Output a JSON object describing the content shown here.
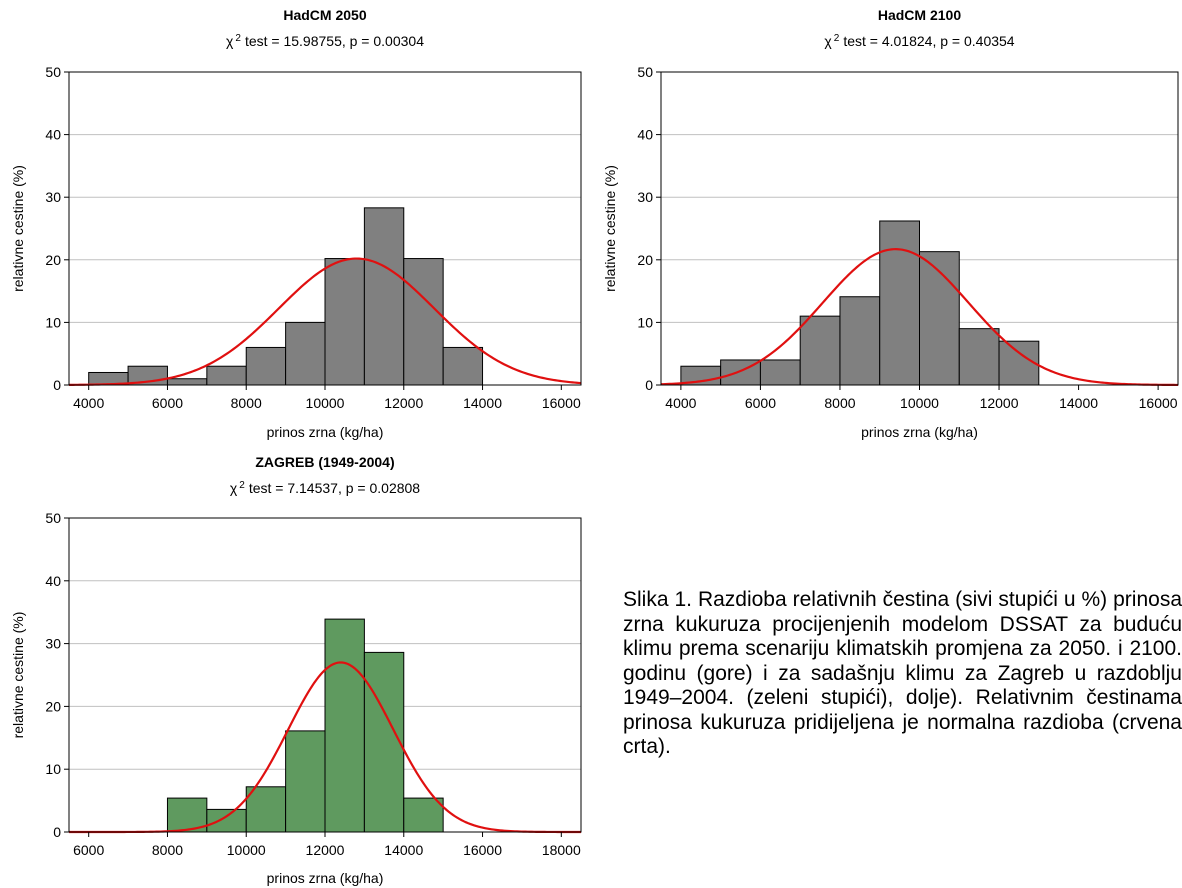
{
  "figure_caption": "Slika 1. Razdioba relativnih čestina (sivi stupići u %) prinosa zrna kukuruza procijenjenih modelom DSSAT za buduću klimu prema scenariju klimatskih promjena za 2050. i 2100. godinu (gore) i za sadašnju klimu za Zagreb u razdoblju 1949–2004. (zeleni stupići), dolje). Relativnim čestinama prinosa kukuruza pridijeljena je normalna razdioba (crvena crta).",
  "colors": {
    "gray_bar": "#808080",
    "green_bar": "#5f9a5f",
    "normal_curve": "#e01010",
    "grid": "#c0c0c0"
  },
  "chart_data": [
    {
      "type": "bar",
      "title": "HadCM 2050",
      "chi_symbol": "χ",
      "chi_sup": "2",
      "subtitle": "test = 15.98755, p = 0.00304",
      "xlabel": "prinos zrna (kg/ha)",
      "ylabel": "relativne cestine (%)",
      "xlim": [
        3500,
        16500
      ],
      "ylim": [
        0,
        50
      ],
      "xticks": [
        "4000",
        "6000",
        "8000",
        "10000",
        "12000",
        "14000",
        "16000"
      ],
      "yticks": [
        "0",
        "10",
        "20",
        "30",
        "40",
        "50"
      ],
      "bins": [
        [
          4000,
          5000
        ],
        [
          5000,
          6000
        ],
        [
          6000,
          7000
        ],
        [
          7000,
          8000
        ],
        [
          8000,
          9000
        ],
        [
          9000,
          10000
        ],
        [
          10000,
          11000
        ],
        [
          11000,
          12000
        ],
        [
          12000,
          13000
        ],
        [
          13000,
          14000
        ]
      ],
      "values": [
        2,
        3,
        1,
        3,
        6,
        10,
        20.2,
        28.3,
        20.2,
        6
      ],
      "bar_color": "gray",
      "normal_fit": {
        "mean": 10800,
        "sd": 1970,
        "peak": 20.2
      }
    },
    {
      "type": "bar",
      "title": "HadCM 2100",
      "chi_symbol": "χ",
      "chi_sup": "2",
      "subtitle": "test = 4.01824, p = 0.40354",
      "xlabel": "prinos zrna (kg/ha)",
      "ylabel": "relativne cestine (%)",
      "xlim": [
        3500,
        16500
      ],
      "ylim": [
        0,
        50
      ],
      "xticks": [
        "4000",
        "6000",
        "8000",
        "10000",
        "12000",
        "14000",
        "16000"
      ],
      "yticks": [
        "0",
        "10",
        "20",
        "30",
        "40",
        "50"
      ],
      "bins": [
        [
          4000,
          5000
        ],
        [
          5000,
          6000
        ],
        [
          6000,
          7000
        ],
        [
          7000,
          8000
        ],
        [
          8000,
          9000
        ],
        [
          9000,
          10000
        ],
        [
          10000,
          11000
        ],
        [
          11000,
          12000
        ],
        [
          12000,
          13000
        ]
      ],
      "values": [
        3,
        4,
        4,
        11,
        14.1,
        26.2,
        21.3,
        9,
        7
      ],
      "bar_color": "gray",
      "normal_fit": {
        "mean": 9400,
        "sd": 1830,
        "peak": 21.7
      }
    },
    {
      "type": "bar",
      "title": "ZAGREB (1949-2004)",
      "chi_symbol": "χ",
      "chi_sup": "2",
      "subtitle": "test = 7.14537, p = 0.02808",
      "xlabel": "prinos zrna (kg/ha)",
      "ylabel": "relativne cestine (%)",
      "xlim": [
        5500,
        18500
      ],
      "ylim": [
        0,
        50
      ],
      "xticks": [
        "6000",
        "8000",
        "10000",
        "12000",
        "14000",
        "16000",
        "18000"
      ],
      "yticks": [
        "0",
        "10",
        "20",
        "30",
        "40",
        "50"
      ],
      "bins": [
        [
          8000,
          9000
        ],
        [
          9000,
          10000
        ],
        [
          10000,
          11000
        ],
        [
          11000,
          12000
        ],
        [
          12000,
          13000
        ],
        [
          13000,
          14000
        ],
        [
          14000,
          15000
        ]
      ],
      "values": [
        5.4,
        3.6,
        7.2,
        16.1,
        33.9,
        28.6,
        5.4
      ],
      "bar_color": "green",
      "normal_fit": {
        "mean": 12400,
        "sd": 1330,
        "peak": 27.0
      }
    }
  ]
}
